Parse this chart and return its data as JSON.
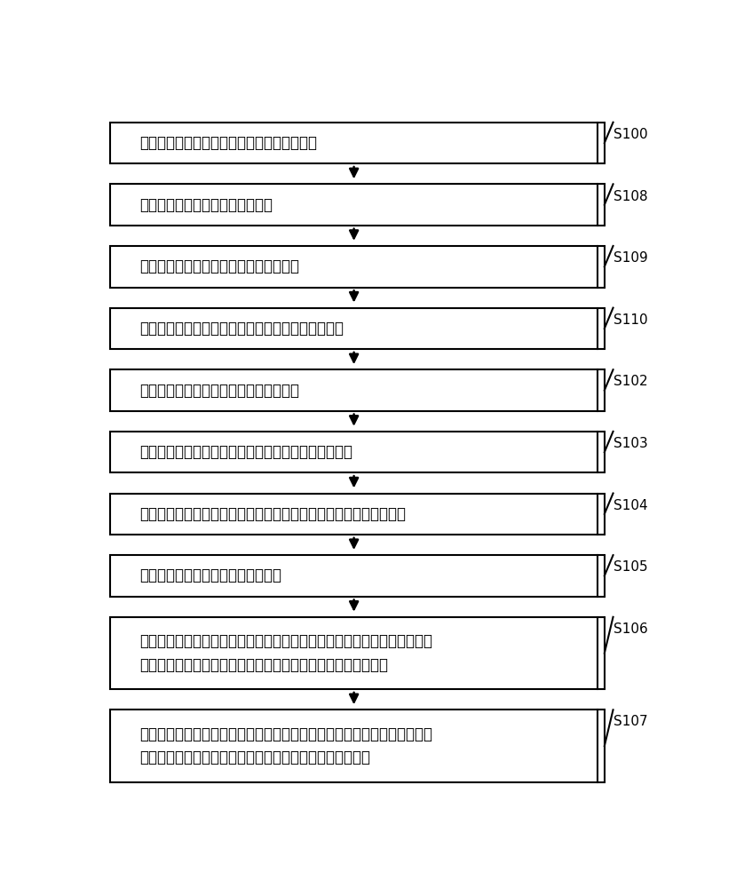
{
  "steps": [
    {
      "label": "根据会议的音频数据获取文本格式的会议记录",
      "step_id": "S100",
      "lines": 1
    },
    {
      "label": "向会议的会议记录人发送会议记录",
      "step_id": "S108",
      "lines": 1
    },
    {
      "label": "接收会议记录人返回的修改后的会议记录",
      "step_id": "S109",
      "lines": 1
    },
    {
      "label": "根据修改后的会议记录获取文本格式的会议纪要初稿",
      "step_id": "S110",
      "lines": 1
    },
    {
      "label": "向会议的所有与会人员发送会议纪要初稿",
      "step_id": "S102",
      "lines": 1
    },
    {
      "label": "接收所有与会人员返回的带有修订标记的会议纪要初稿",
      "step_id": "S103",
      "lines": 1
    },
    {
      "label": "向会议主持人发送所有与会人员返回的带有修订标记的会议纪要初稿",
      "step_id": "S104",
      "lines": 1
    },
    {
      "label": "接收会议主持人返回的会议纪要终稿",
      "step_id": "S105",
      "lines": 1
    },
    {
      "label": "发布音频数据、会议记录以及会议纪要终稿，并且对音频数据、会议记录、\n带有修订标记的会议纪要初稿、以及会议纪要终稿进行关联存储",
      "step_id": "S106",
      "lines": 2
    },
    {
      "label": "在查询者查询会议的情况下，根据查询者的权限等级对关联存储的文件进行\n分割，并且向查询者发送符合查询者自身的权限等级的文件",
      "step_id": "S107",
      "lines": 2
    }
  ],
  "box_color": "#ffffff",
  "box_edge_color": "#000000",
  "text_color": "#000000",
  "arrow_color": "#000000",
  "label_color": "#000000",
  "bg_color": "#ffffff",
  "font_size": 12,
  "label_font_size": 11
}
